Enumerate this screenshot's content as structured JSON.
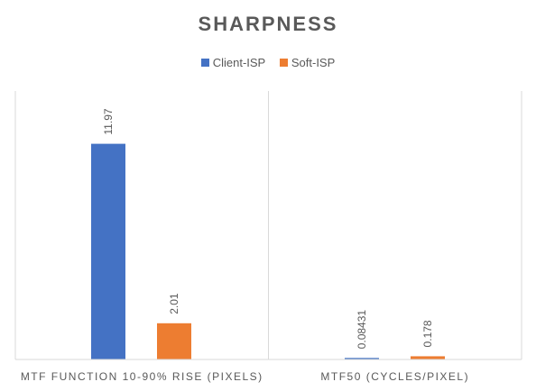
{
  "chart_data": {
    "type": "bar",
    "title": "SHARPNESS",
    "categories": [
      "MTF FUNCTION 10-90% RISE (PIXELS)",
      "MTF50 (CYCLES/PIXEL)"
    ],
    "series": [
      {
        "name": "Client-ISP",
        "color": "#4472C4",
        "values": [
          11.97,
          0.08431
        ],
        "labels": [
          "11.97",
          "0.08431"
        ]
      },
      {
        "name": "Soft-ISP",
        "color": "#ED7D31",
        "values": [
          2.01,
          0.178
        ],
        "labels": [
          "2.01",
          "0.178"
        ]
      }
    ],
    "ylim": [
      0,
      14.9
    ],
    "grid": false,
    "legend_position": "top"
  }
}
